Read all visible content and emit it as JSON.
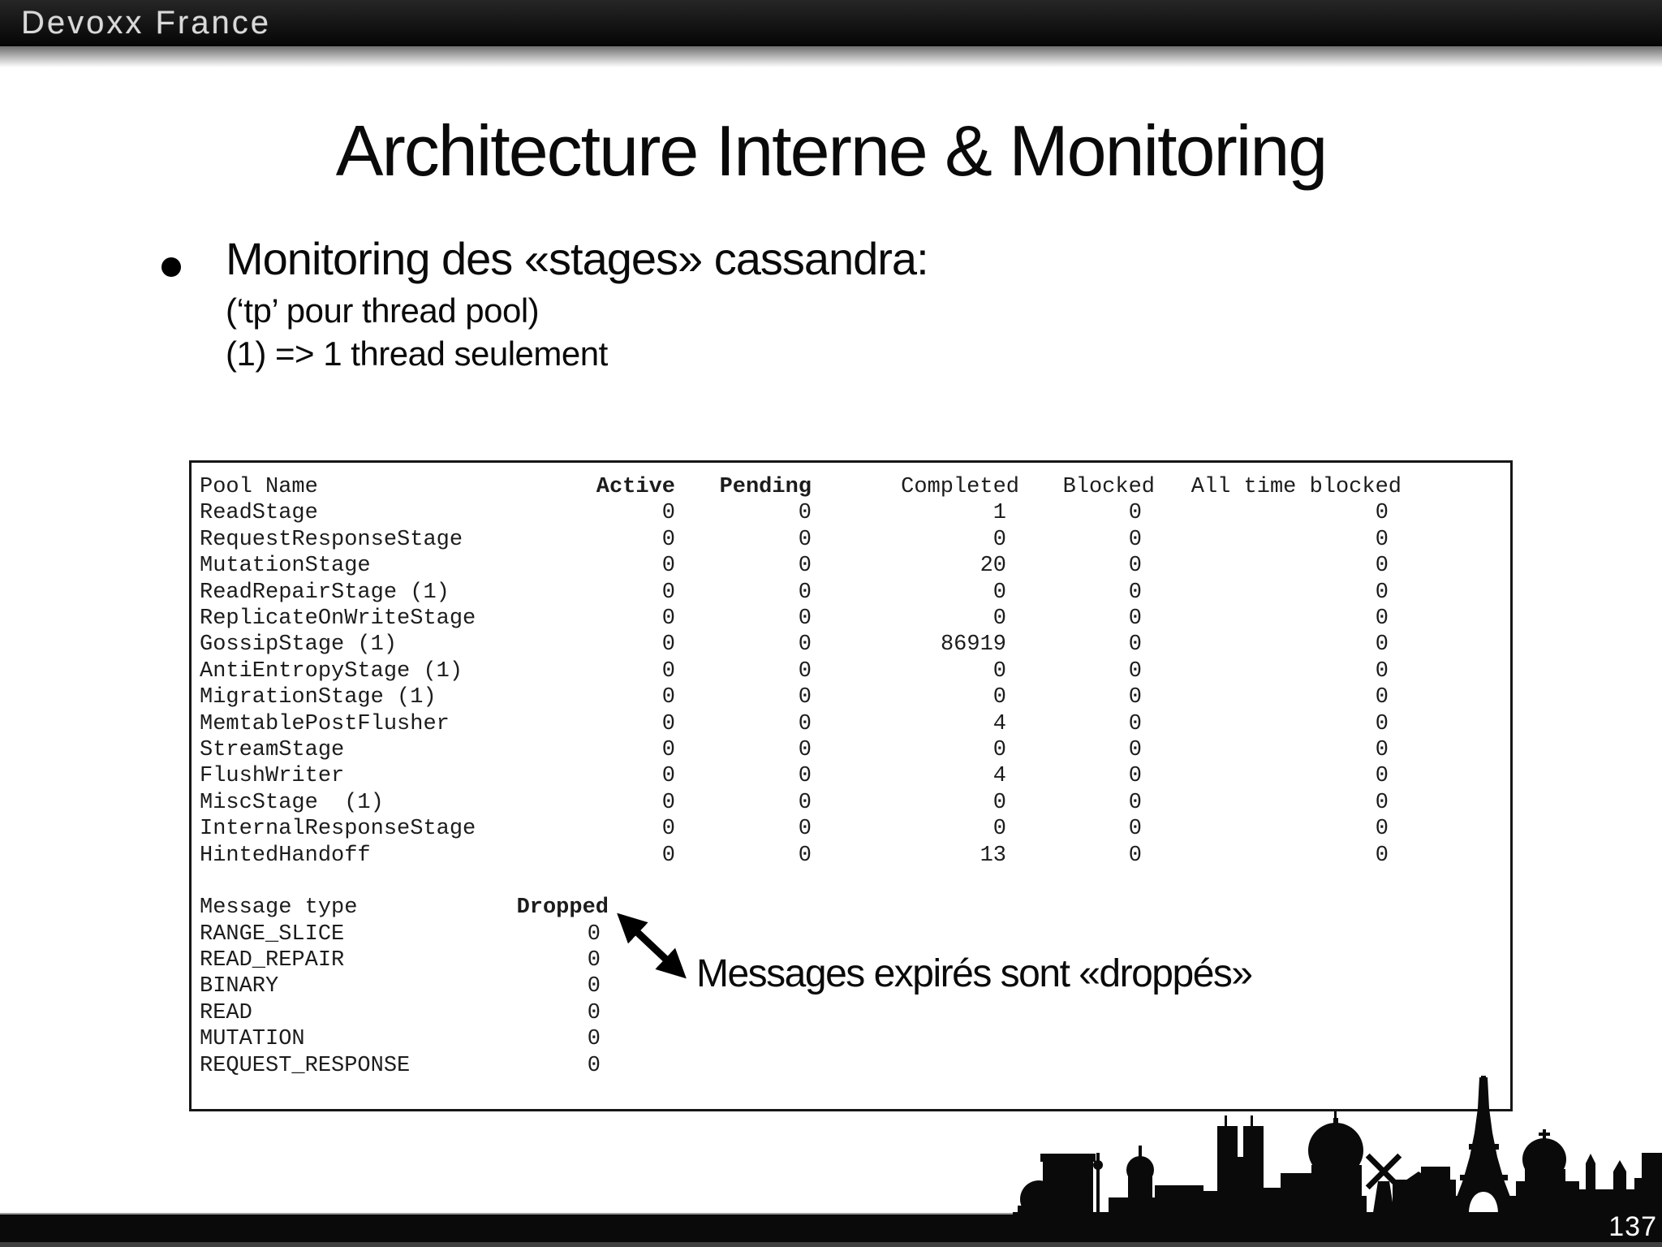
{
  "header": {
    "brand": "Devoxx France"
  },
  "slide": {
    "title": "Architecture Interne & Monitoring",
    "bullet": {
      "text": "Monitoring des «stages» cassandra:",
      "sub1": "(‘tp’ pour thread pool)",
      "sub2": "(1) => 1 thread seulement"
    }
  },
  "tpstats": {
    "columns": [
      "Pool Name",
      "Active",
      "Pending",
      "Completed",
      "Blocked",
      "All time blocked"
    ],
    "bold_columns": [
      "Active",
      "Pending"
    ],
    "rows": [
      [
        "ReadStage",
        "0",
        "0",
        "1",
        "0",
        "0"
      ],
      [
        "RequestResponseStage",
        "0",
        "0",
        "0",
        "0",
        "0"
      ],
      [
        "MutationStage",
        "0",
        "0",
        "20",
        "0",
        "0"
      ],
      [
        "ReadRepairStage (1)",
        "0",
        "0",
        "0",
        "0",
        "0"
      ],
      [
        "ReplicateOnWriteStage",
        "0",
        "0",
        "0",
        "0",
        "0"
      ],
      [
        "GossipStage (1)",
        "0",
        "0",
        "86919",
        "0",
        "0"
      ],
      [
        "AntiEntropyStage (1)",
        "0",
        "0",
        "0",
        "0",
        "0"
      ],
      [
        "MigrationStage (1)",
        "0",
        "0",
        "0",
        "0",
        "0"
      ],
      [
        "MemtablePostFlusher",
        "0",
        "0",
        "4",
        "0",
        "0"
      ],
      [
        "StreamStage",
        "0",
        "0",
        "0",
        "0",
        "0"
      ],
      [
        "FlushWriter",
        "0",
        "0",
        "4",
        "0",
        "0"
      ],
      [
        "MiscStage  (1)",
        "0",
        "0",
        "0",
        "0",
        "0"
      ],
      [
        "InternalResponseStage",
        "0",
        "0",
        "0",
        "0",
        "0"
      ],
      [
        "HintedHandoff",
        "0",
        "0",
        "13",
        "0",
        "0"
      ]
    ],
    "message_columns": [
      "Message type",
      "Dropped"
    ],
    "bold_message_columns": [
      "Dropped"
    ],
    "message_rows": [
      [
        "RANGE_SLICE",
        "0"
      ],
      [
        "READ_REPAIR",
        "0"
      ],
      [
        "BINARY",
        "0"
      ],
      [
        "READ",
        "0"
      ],
      [
        "MUTATION",
        "0"
      ],
      [
        "REQUEST_RESPONSE",
        "0"
      ]
    ]
  },
  "annotation": {
    "text": "Messages expirés sont «droppés»"
  },
  "footer": {
    "page_number": "137"
  },
  "icons": {
    "bullet_dot": "filled-circle",
    "double_arrow": "double-headed-diagonal-arrow",
    "skyline": "paris-skyline-silhouette"
  },
  "colors": {
    "top_bar": "#0b0b0b",
    "bottom_bar": "#0a0a0a",
    "brand_text": "#d9d9d9",
    "page_number": "#ffffff",
    "silhouette": "#0a0a0a"
  }
}
